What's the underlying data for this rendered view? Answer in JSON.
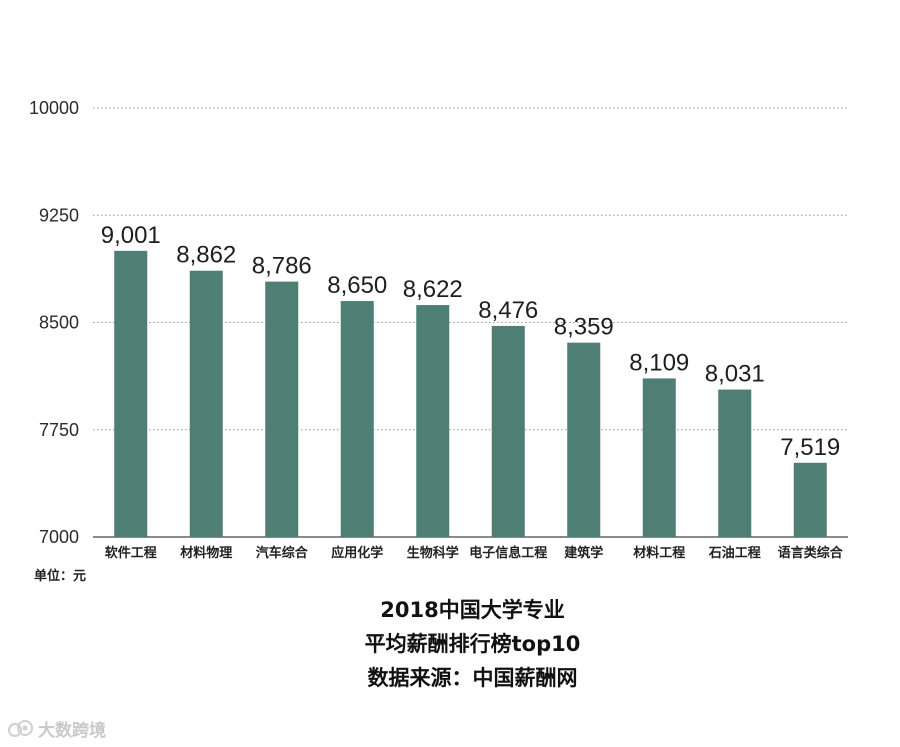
{
  "chart_data": {
    "type": "bar",
    "categories": [
      "软件工程",
      "材料物理",
      "汽车综合",
      "应用化学",
      "生物科学",
      "电子信息工程",
      "建筑学",
      "材料工程",
      "石油工程",
      "语言类综合"
    ],
    "values": [
      9001,
      8862,
      8786,
      8650,
      8622,
      8476,
      8359,
      8109,
      8031,
      7519
    ],
    "value_labels": [
      "9,001",
      "8,862",
      "8,786",
      "8,650",
      "8,622",
      "8,476",
      "8,359",
      "8,109",
      "8,031",
      "7,519"
    ],
    "y_ticks": [
      "7000",
      "7750",
      "8500",
      "9250",
      "10000"
    ],
    "ylim": [
      7000,
      10000
    ],
    "grid": true,
    "bar_color": "#4f7f74",
    "unit_note": "单位：元",
    "title_lines": [
      "2018中国大学专业",
      "平均薪酬排行榜top10",
      "数据来源：中国薪酬网"
    ]
  },
  "watermark": {
    "text": "大数跨境",
    "icon": "camera-logo-icon"
  }
}
